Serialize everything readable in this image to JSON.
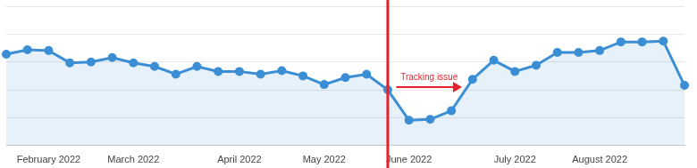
{
  "chart_data": {
    "type": "line",
    "categories": [
      null,
      null,
      "February 2022",
      null,
      null,
      null,
      "March 2022",
      null,
      null,
      null,
      null,
      "April 2022",
      null,
      null,
      null,
      "May 2022",
      null,
      null,
      null,
      "June 2022",
      null,
      null,
      null,
      null,
      "July 2022",
      null,
      null,
      null,
      "August 2022",
      null,
      null,
      null,
      null
    ],
    "values": [
      3.28,
      3.44,
      3.41,
      2.97,
      3.0,
      3.16,
      2.97,
      2.84,
      2.56,
      2.84,
      2.66,
      2.66,
      2.56,
      2.69,
      2.5,
      2.19,
      2.44,
      2.56,
      2.0,
      0.91,
      0.94,
      1.25,
      2.38,
      3.06,
      2.66,
      2.88,
      3.34,
      3.34,
      3.41,
      3.72,
      3.72,
      3.75,
      2.16
    ],
    "color": "#3b8ed4",
    "marker": "circle",
    "ylim": [
      0,
      5
    ],
    "yticks": [
      0,
      1,
      2,
      3,
      4,
      5
    ],
    "grid": true,
    "tick_labels": "x",
    "annotations": [
      {
        "type": "vline",
        "x": 18,
        "color": "#e8202a"
      },
      {
        "type": "arrow",
        "text": "Tracking issue",
        "x": [
          18.4,
          21.5
        ],
        "y": 2.1,
        "color": "#e8202a"
      }
    ]
  }
}
